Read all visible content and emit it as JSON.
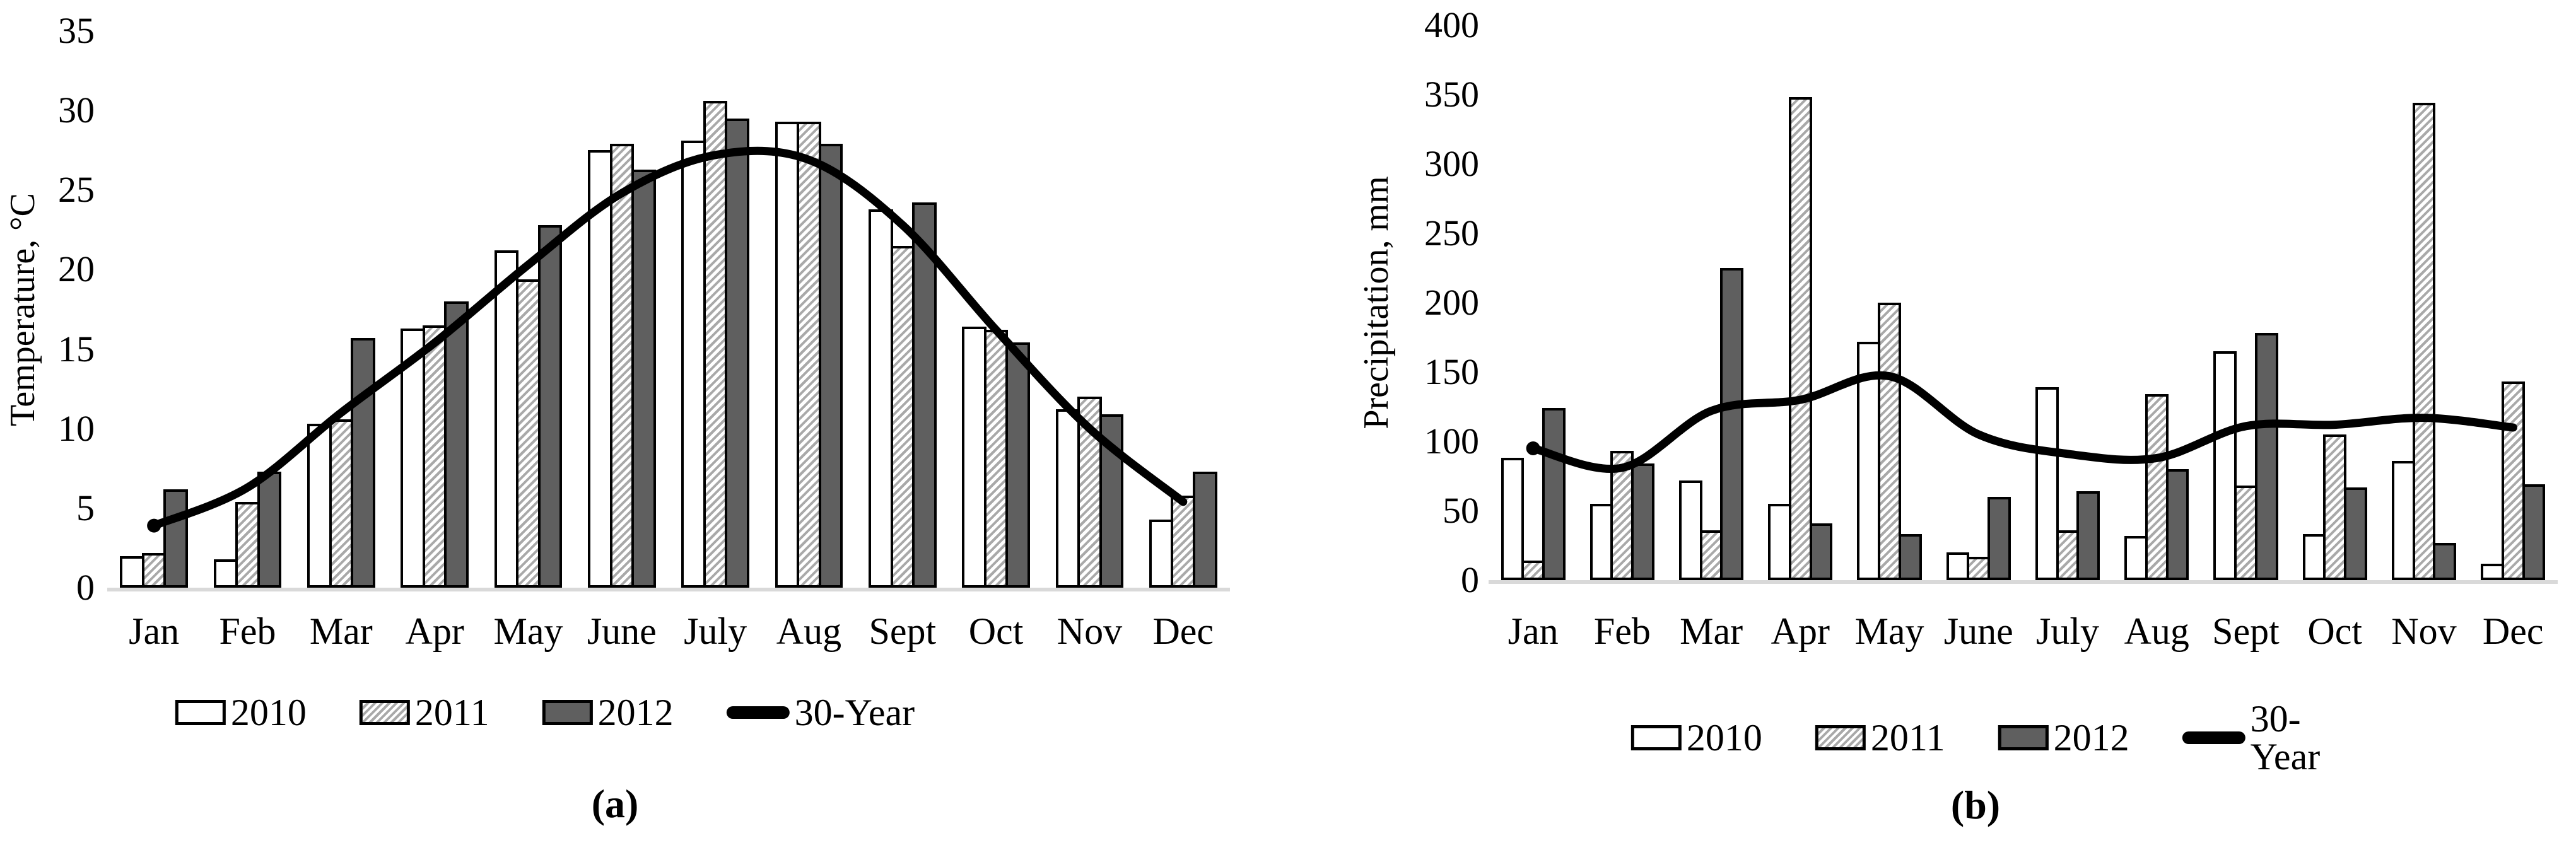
{
  "figure": {
    "background": "#ffffff",
    "text_color": "#000000"
  },
  "colors": {
    "bar_border": "#000000",
    "bar_2010_fill": "#ffffff",
    "bar_2011_hatch_stripe": "#a9a9a9",
    "bar_2012_fill": "#5f5f5f",
    "trend_line": "#000000",
    "axis_baseline": "#d9d9d9"
  },
  "chart_data": [
    {
      "type": "bar",
      "title": "",
      "caption": "(a)",
      "ylabel": "Temperature, °C",
      "xlabel": "",
      "ylim": [
        0,
        35
      ],
      "yticks": [
        35,
        30,
        25,
        20,
        15,
        10,
        5,
        0
      ],
      "grid": false,
      "legend_position": "bottom",
      "categories": [
        "Jan",
        "Feb",
        "Mar",
        "Apr",
        "May",
        "June",
        "July",
        "Aug",
        "Sept",
        "Oct",
        "Nov",
        "Dec"
      ],
      "series": [
        {
          "name": "2010",
          "swatch": "white",
          "values": [
            2.0,
            1.8,
            10.3,
            16.3,
            21.2,
            27.5,
            28.1,
            29.3,
            23.8,
            16.4,
            11.2,
            4.3
          ]
        },
        {
          "name": "2011",
          "swatch": "hatched",
          "values": [
            2.2,
            5.4,
            10.6,
            16.5,
            19.4,
            27.9,
            30.6,
            29.3,
            21.5,
            16.2,
            12.0,
            5.8
          ]
        },
        {
          "name": "2012",
          "swatch": "darkgray",
          "values": [
            6.2,
            7.3,
            15.7,
            18.0,
            22.8,
            26.3,
            29.5,
            27.9,
            24.2,
            15.4,
            10.9,
            7.3
          ]
        }
      ],
      "line_series": {
        "name": "30-Year",
        "values": [
          3.9,
          6.3,
          11.0,
          15.4,
          20.3,
          24.8,
          27.2,
          26.9,
          22.8,
          16.2,
          10.0,
          5.4
        ]
      }
    },
    {
      "type": "bar",
      "title": "",
      "caption": "(b)",
      "ylabel": "Precipitation, mm",
      "xlabel": "",
      "ylim": [
        0,
        400
      ],
      "yticks": [
        400,
        350,
        300,
        250,
        200,
        150,
        100,
        50,
        0
      ],
      "grid": false,
      "legend_position": "bottom",
      "categories": [
        "Jan",
        "Feb",
        "Mar",
        "Apr",
        "May",
        "June",
        "July",
        "Aug",
        "Sept",
        "Oct",
        "Nov",
        "Dec"
      ],
      "series": [
        {
          "name": "2010",
          "swatch": "white",
          "values": [
            88,
            55,
            72,
            55,
            172,
            20,
            139,
            32,
            165,
            33,
            86,
            12
          ]
        },
        {
          "name": "2011",
          "swatch": "hatched",
          "values": [
            14,
            93,
            36,
            348,
            200,
            17,
            36,
            134,
            68,
            105,
            344,
            143
          ]
        },
        {
          "name": "2012",
          "swatch": "darkgray",
          "values": [
            124,
            84,
            225,
            41,
            33,
            60,
            64,
            80,
            178,
            67,
            27,
            69
          ]
        }
      ],
      "line_series": {
        "name": "30-Year",
        "values": [
          95,
          81,
          122,
          130,
          147,
          105,
          91,
          88,
          111,
          112,
          117,
          110
        ]
      }
    }
  ]
}
